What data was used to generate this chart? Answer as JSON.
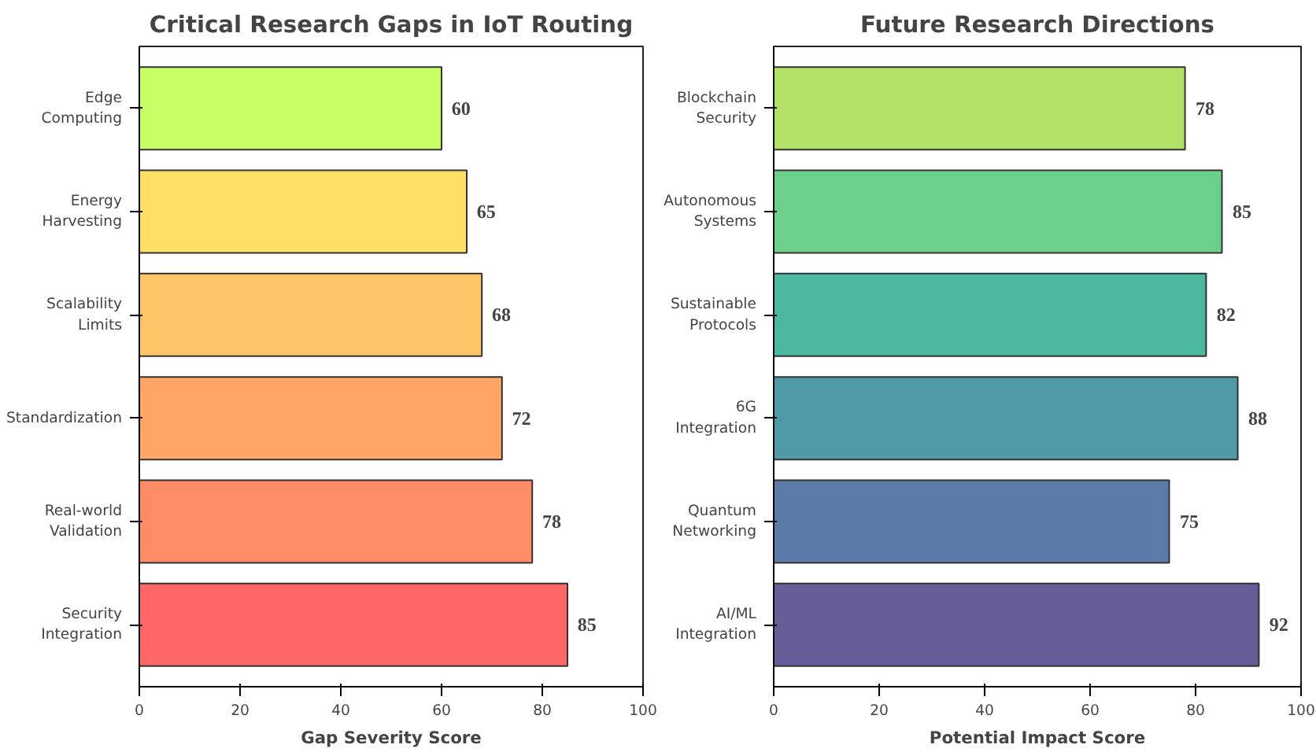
{
  "chart_data": [
    {
      "type": "bar",
      "orientation": "horizontal",
      "title": "Critical Research Gaps in IoT Routing",
      "xlabel": "Gap Severity Score",
      "categories": [
        "Edge\nComputing",
        "Energy\nHarvesting",
        "Scalability\nLimits",
        "Standardization",
        "Real-world\nValidation",
        "Security\nIntegration"
      ],
      "values": [
        60,
        65,
        68,
        72,
        78,
        85
      ],
      "colors": [
        "#c8ff64",
        "#ffe066",
        "#ffc566",
        "#ffa566",
        "#ff8c66",
        "#ff6666"
      ],
      "xlim": [
        0,
        100
      ],
      "xticks": [
        0,
        20,
        40,
        60,
        80,
        100
      ],
      "data_labels": true,
      "grid": false
    },
    {
      "type": "bar",
      "orientation": "horizontal",
      "title": "Future Research Directions",
      "xlabel": "Potential Impact Score",
      "categories": [
        "Blockchain\nSecurity",
        "Autonomous\nSystems",
        "Sustainable\nProtocols",
        "6G\nIntegration",
        "Quantum\nNetworking",
        "AI/ML\nIntegration"
      ],
      "values": [
        78,
        85,
        82,
        88,
        75,
        92
      ],
      "colors": [
        "#b3e066",
        "#6ccf8a",
        "#4db8a0",
        "#5099a6",
        "#5c7ba6",
        "#6a5c99"
      ],
      "xlim": [
        0,
        100
      ],
      "xticks": [
        0,
        20,
        40,
        60,
        80,
        100
      ],
      "data_labels": true,
      "grid": false
    }
  ]
}
